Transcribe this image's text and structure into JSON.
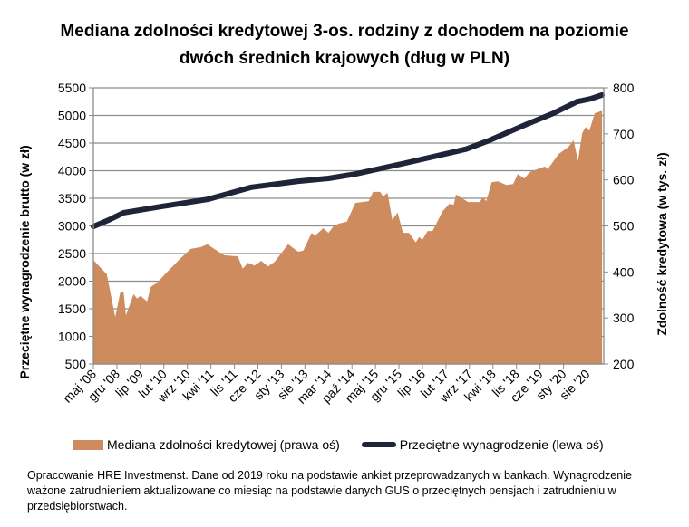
{
  "chart_data": {
    "type": "area+line",
    "title_line1": "Mediana zdolności kredytowej 3-os. rodziny z dochodem na poziomie",
    "title_line2": "dwóch średnich krajowych (dług w PLN)",
    "ylabel_left": "Przeciętne wynagrodzenie brutto (w zł)",
    "ylabel_right": "Zdolność kredytowa (w tys. zł)",
    "ylim_left": [
      500,
      5500
    ],
    "ylim_right": [
      200,
      800
    ],
    "yticks_left": [
      "500",
      "1000",
      "1500",
      "2000",
      "2500",
      "3000",
      "3500",
      "4000",
      "4500",
      "5000",
      "5500"
    ],
    "yticks_right": [
      "200",
      "300",
      "400",
      "500",
      "600",
      "700",
      "800"
    ],
    "x_start": "maj '08",
    "x_months": 152,
    "xticks": [
      "maj '08",
      "gru '08",
      "lip '09",
      "lut '10",
      "wrz '10",
      "kwi '11",
      "lis '11",
      "cze '12",
      "sty '13",
      "sie '13",
      "mar '14",
      "paź '14",
      "maj '15",
      "gru '15",
      "lip '16",
      "lut '17",
      "wrz '17",
      "kwi '18",
      "lis '18",
      "cze '19",
      "sty '20",
      "sie '20"
    ],
    "grid": true,
    "legend_position": "bottom",
    "series": [
      {
        "name": "Mediana zdolności kredytowej (prawa oś)",
        "type": "area",
        "axis": "right",
        "color": "#CE8B5E",
        "points": [
          [
            0,
            426
          ],
          [
            4,
            395
          ],
          [
            6.5,
            302
          ],
          [
            8,
            355
          ],
          [
            9,
            357
          ],
          [
            9.7,
            306
          ],
          [
            12,
            352
          ],
          [
            13,
            342
          ],
          [
            14,
            348
          ],
          [
            16,
            336
          ],
          [
            17,
            367
          ],
          [
            19,
            377
          ],
          [
            22,
            400
          ],
          [
            26,
            430
          ],
          [
            29,
            450
          ],
          [
            32,
            454
          ],
          [
            34,
            460
          ],
          [
            36,
            450
          ],
          [
            39,
            436
          ],
          [
            43,
            434
          ],
          [
            44.5,
            407
          ],
          [
            46,
            420
          ],
          [
            48,
            414
          ],
          [
            50,
            424
          ],
          [
            52,
            412
          ],
          [
            54,
            422
          ],
          [
            58,
            460
          ],
          [
            61,
            444
          ],
          [
            62.5,
            446
          ],
          [
            65,
            485
          ],
          [
            66,
            479
          ],
          [
            68.5,
            495
          ],
          [
            70,
            485
          ],
          [
            71.5,
            499
          ],
          [
            73,
            505
          ],
          [
            75.5,
            509
          ],
          [
            78,
            550
          ],
          [
            82,
            554
          ],
          [
            83.3,
            574
          ],
          [
            85.4,
            574
          ],
          [
            86.3,
            564
          ],
          [
            87.6,
            572
          ],
          [
            89,
            513
          ],
          [
            90.6,
            529
          ],
          [
            92.2,
            485
          ],
          [
            94,
            485
          ],
          [
            96,
            464
          ],
          [
            97,
            476
          ],
          [
            98,
            470
          ],
          [
            99.5,
            489
          ],
          [
            101,
            489
          ],
          [
            104,
            532
          ],
          [
            106,
            548
          ],
          [
            107.3,
            546
          ],
          [
            108,
            568
          ],
          [
            111.6,
            552
          ],
          [
            115,
            552
          ],
          [
            116,
            562
          ],
          [
            117,
            554
          ],
          [
            118.6,
            595
          ],
          [
            120.5,
            597
          ],
          [
            123,
            589
          ],
          [
            125,
            591
          ],
          [
            126.4,
            613
          ],
          [
            128.3,
            603
          ],
          [
            130,
            617
          ],
          [
            132,
            623
          ],
          [
            134.5,
            629
          ],
          [
            135.3,
            623
          ],
          [
            138.5,
            656
          ],
          [
            141.5,
            672
          ],
          [
            143,
            686
          ],
          [
            144.3,
            641
          ],
          [
            145.6,
            702
          ],
          [
            146.6,
            715
          ],
          [
            147.7,
            707
          ],
          [
            149.3,
            745
          ],
          [
            151.5,
            750
          ]
        ]
      },
      {
        "name": "Przeciętne wynagrodzenie (lewa oś)",
        "type": "line",
        "axis": "left",
        "color": "#1F2438",
        "points": [
          [
            0,
            2990
          ],
          [
            5,
            3120
          ],
          [
            9,
            3240
          ],
          [
            20,
            3350
          ],
          [
            34,
            3480
          ],
          [
            47,
            3700
          ],
          [
            61,
            3810
          ],
          [
            70,
            3860
          ],
          [
            78,
            3940
          ],
          [
            93,
            4140
          ],
          [
            111,
            4390
          ],
          [
            118,
            4550
          ],
          [
            129,
            4840
          ],
          [
            137,
            5040
          ],
          [
            144,
            5250
          ],
          [
            148,
            5300
          ],
          [
            151.5,
            5370
          ]
        ]
      }
    ]
  },
  "footnote": "Opracowanie HRE Investmenst. Dane od 2019 roku na podstawie ankiet przeprowadzanych w bankach. Wynagrodzenie ważone zatrudnieniem aktualizowane co miesiąc na podstawie danych GUS o przeciętnych pensjach i zatrudnieniu w przedsiębiorstwach."
}
